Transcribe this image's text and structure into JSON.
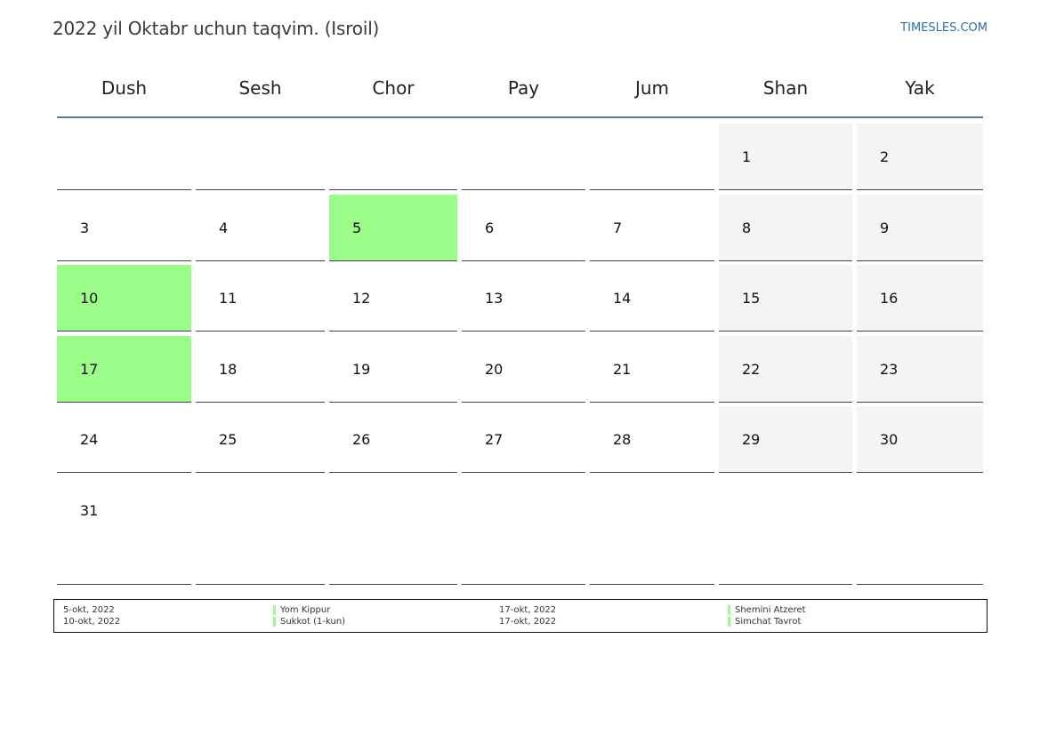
{
  "title": "2022 yil Oktabr uchun taqvim. (Isroil)",
  "site": "TIMESLES.COM",
  "colors": {
    "holiday": "#9bfc8a",
    "weekend": "#f4f4f4",
    "header_line": "#5b7a9a"
  },
  "weekdays": [
    "Dush",
    "Sesh",
    "Chor",
    "Pay",
    "Jum",
    "Shan",
    "Yak"
  ],
  "weeks": [
    [
      "",
      "",
      "",
      "",
      "",
      "1",
      "2"
    ],
    [
      "3",
      "4",
      "5",
      "6",
      "7",
      "8",
      "9"
    ],
    [
      "10",
      "11",
      "12",
      "13",
      "14",
      "15",
      "16"
    ],
    [
      "17",
      "18",
      "19",
      "20",
      "21",
      "22",
      "23"
    ],
    [
      "24",
      "25",
      "26",
      "27",
      "28",
      "29",
      "30"
    ],
    [
      "31",
      "",
      "",
      "",
      "",
      "",
      ""
    ]
  ],
  "holidays": [
    "5",
    "10",
    "17"
  ],
  "legend": [
    {
      "date": "5-okt, 2022",
      "name": "Yom Kippur"
    },
    {
      "date": "10-okt, 2022",
      "name": "Sukkot (1-kun)"
    },
    {
      "date": "17-okt, 2022",
      "name": "Shemini Atzeret"
    },
    {
      "date": "17-okt, 2022",
      "name": "Simchat Tavrot"
    }
  ]
}
